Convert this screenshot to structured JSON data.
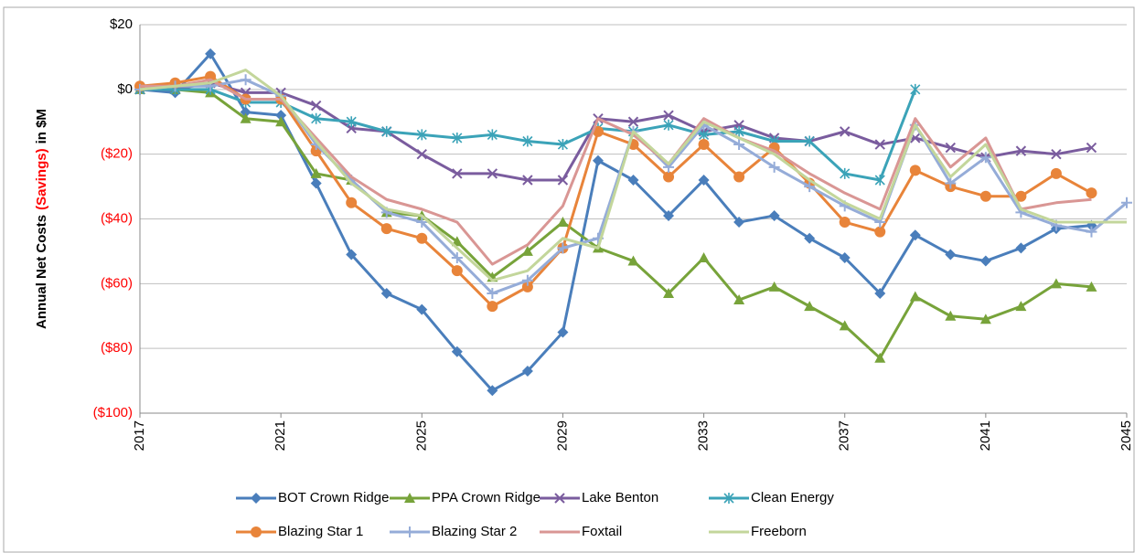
{
  "chart_data": {
    "type": "line",
    "y_label": [
      "Annual Net Costs",
      "(Savings)",
      "in $M"
    ],
    "y_label_colors": [
      "#000000",
      "#ff0000",
      "#000000"
    ],
    "negative_tick_color": "#ff0000",
    "x": [
      2017,
      2018,
      2019,
      2020,
      2021,
      2022,
      2023,
      2024,
      2025,
      2026,
      2027,
      2028,
      2029,
      2030,
      2031,
      2032,
      2033,
      2034,
      2035,
      2036,
      2037,
      2038,
      2039,
      2040,
      2041,
      2042,
      2043,
      2044,
      2045
    ],
    "xlim": [
      2017,
      2045
    ],
    "xticks": [
      2017,
      2021,
      2025,
      2029,
      2033,
      2037,
      2041,
      2045
    ],
    "ylim": [
      -100,
      20
    ],
    "yticks": [
      {
        "value": -100,
        "label": "($100)"
      },
      {
        "value": -80,
        "label": "($80)"
      },
      {
        "value": -60,
        "label": "($60)"
      },
      {
        "value": -40,
        "label": "($40)"
      },
      {
        "value": -20,
        "label": "($20)"
      },
      {
        "value": 0,
        "label": "$0"
      },
      {
        "value": 20,
        "label": "$20"
      }
    ],
    "grid": true,
    "legend": "bottom",
    "series": [
      {
        "name": "BOT Crown Ridge",
        "color": "#4a7ebb",
        "marker": "diamond",
        "values": [
          0,
          -1,
          11,
          -7,
          -8,
          -29,
          -51,
          -63,
          -68,
          -81,
          -93,
          -87,
          -75,
          -22,
          -28,
          -39,
          -28,
          -41,
          -39,
          -46,
          -52,
          -63,
          -45,
          -51,
          -53,
          -49,
          -43,
          -42,
          null
        ]
      },
      {
        "name": "PPA Crown Ridge",
        "color": "#77a33a",
        "marker": "triangle",
        "values": [
          0,
          0,
          -1,
          -9,
          -10,
          -26,
          -28,
          -38,
          -39,
          -47,
          -58,
          -50,
          -41,
          -49,
          -53,
          -63,
          -52,
          -65,
          -61,
          -67,
          -73,
          -83,
          -64,
          -70,
          -71,
          -67,
          -60,
          -61,
          null
        ]
      },
      {
        "name": "Lake Benton",
        "color": "#7a5c9e",
        "marker": "x",
        "values": [
          0,
          0,
          2,
          -1,
          -1,
          -5,
          -12,
          -13,
          -20,
          -26,
          -26,
          -28,
          -28,
          -9,
          -10,
          -8,
          -13,
          -11,
          -15,
          -16,
          -13,
          -17,
          -15,
          -18,
          -21,
          -19,
          -20,
          -18,
          null
        ]
      },
      {
        "name": "Clean Energy",
        "color": "#3ba3b8",
        "marker": "star",
        "values": [
          0,
          0,
          0,
          -4,
          -4,
          -9,
          -10,
          -13,
          -14,
          -15,
          -14,
          -16,
          -17,
          -12,
          -13,
          -11,
          -14,
          -13,
          -16,
          -16,
          -26,
          -28,
          0,
          null,
          null,
          null,
          null,
          null,
          null
        ]
      },
      {
        "name": "Blazing Star 1",
        "color": "#e8843a",
        "marker": "circle",
        "values": [
          1,
          2,
          4,
          -3,
          -3,
          -19,
          -35,
          -43,
          -46,
          -56,
          -67,
          -61,
          -49,
          -13,
          -17,
          -27,
          -17,
          -27,
          -18,
          -29,
          -41,
          -44,
          -25,
          -30,
          -33,
          -33,
          -26,
          -32,
          null
        ]
      },
      {
        "name": "Blazing Star 2",
        "color": "#95acd8",
        "marker": "plus",
        "values": [
          0,
          1,
          1,
          3,
          -2,
          -17,
          -28,
          -38,
          -41,
          -52,
          -63,
          -59,
          -49,
          -46,
          -13,
          -24,
          -11,
          -17,
          -24,
          -30,
          -36,
          -41,
          -11,
          -29,
          -21,
          -38,
          -42,
          -44,
          -35
        ]
      },
      {
        "name": "Foxtail",
        "color": "#d99694",
        "marker": "none",
        "values": [
          1,
          1,
          3,
          -3,
          -3,
          -15,
          -27,
          -34,
          -37,
          -41,
          -54,
          -48,
          -36,
          -9,
          -14,
          -23,
          -9,
          -15,
          -19,
          -26,
          -32,
          -37,
          -9,
          -24,
          -15,
          -37,
          -35,
          -34,
          null
        ]
      },
      {
        "name": "Freeborn",
        "color": "#c3d69b",
        "marker": "none",
        "values": [
          0,
          1,
          2,
          6,
          -2,
          -16,
          -29,
          -37,
          -39,
          -49,
          -59,
          -56,
          -46,
          -49,
          -13,
          -23,
          -10,
          -15,
          -20,
          -28,
          -35,
          -40,
          -11,
          -27,
          -17,
          -37,
          -41,
          -41,
          -41
        ]
      }
    ]
  }
}
